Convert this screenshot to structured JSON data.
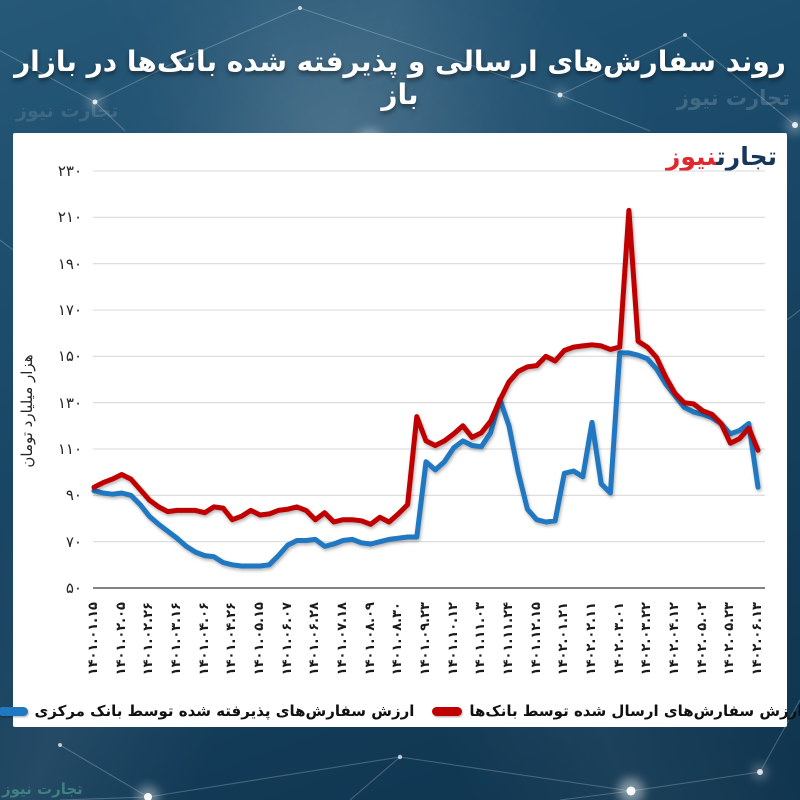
{
  "header": {
    "title": "روند سفارش‌های ارسالی و پذیرفته شده بانک‌ها در بازار باز",
    "watermark": "تجارت نیوز"
  },
  "logo": {
    "part_primary": "تجارت",
    "part_accent": "نیوز"
  },
  "colors": {
    "background_navy": "#15405e",
    "card_white": "#ffffff",
    "sent_red": "#c00000",
    "accepted_blue": "#1f78c1",
    "gridline_gray": "#d9d9d9",
    "axis_gray": "#595959",
    "logo_blue": "#16365c",
    "logo_red": "#e0282e"
  },
  "chart_data": {
    "type": "line",
    "title": "روند سفارش‌های ارسالی و پذیرفته شده بانک‌ها در بازار باز",
    "xlabel": "",
    "ylabel": "هزار میلیارد تومان",
    "ylim": [
      50,
      230
    ],
    "grid": "horizontal",
    "legend_position": "bottom",
    "yticks": [
      {
        "value": 230,
        "label": "۲۳۰"
      },
      {
        "value": 210,
        "label": "۲۱۰"
      },
      {
        "value": 190,
        "label": "۱۹۰"
      },
      {
        "value": 170,
        "label": "۱۷۰"
      },
      {
        "value": 150,
        "label": "۱۵۰"
      },
      {
        "value": 130,
        "label": "۱۳۰"
      },
      {
        "value": 110,
        "label": "۱۱۰"
      },
      {
        "value": 90,
        "label": "۹۰"
      },
      {
        "value": 70,
        "label": "۷۰"
      },
      {
        "value": 50,
        "label": "۵۰"
      }
    ],
    "x_tick_labels": [
      "۱۴۰۱.۰۱.۱۵",
      "۱۴۰۱.۰۲.۰۵",
      "۱۴۰۱.۰۲.۲۶",
      "۱۴۰۱.۰۳.۱۶",
      "۱۴۰۱.۰۴.۰۶",
      "۱۴۰۱.۰۴.۲۶",
      "۱۴۰۱.۰۵.۱۵",
      "۱۴۰۱.۰۶.۰۷",
      "۱۴۰۱.۰۶.۲۸",
      "۱۴۰۱.۰۷.۱۸",
      "۱۴۰۱.۰۸.۰۹",
      "۱۴۰۱.۰۸.۳۰",
      "۱۴۰۱.۰۹.۲۳",
      "۱۴۰۱.۱۰.۱۲",
      "۱۴۰۱.۱۱.۰۳",
      "۱۴۰۱.۱۱.۲۴",
      "۱۴۰۱.۱۲.۱۵",
      "۱۴۰۲.۰۱.۲۱",
      "۱۴۰۲.۰۲.۱۱",
      "۱۴۰۲.۰۳.۰۱",
      "۱۴۰۲.۰۳.۲۲",
      "۱۴۰۲.۰۴.۱۲",
      "۱۴۰۲.۰۵.۰۲",
      "۱۴۰۲.۰۵.۲۳",
      "۱۴۰۲.۰۶.۱۳"
    ],
    "x_label_every_n_points": 3,
    "series": [
      {
        "name": "ارزش سفارش‌های ارسال شده توسط بانک‌ها",
        "color": "#c00000",
        "values": [
          93.5,
          95.5,
          97,
          99,
          97,
          92.5,
          88,
          85,
          83,
          83.5,
          83.5,
          83.5,
          82.5,
          85,
          84.5,
          79.5,
          81,
          83.5,
          81.5,
          82,
          83.5,
          84,
          85,
          83.5,
          79.5,
          82.5,
          78.5,
          79.5,
          79.5,
          79,
          77.5,
          80.5,
          78.5,
          82,
          86,
          124,
          113.5,
          111.5,
          113.5,
          116.5,
          120,
          115,
          117,
          122,
          131,
          139,
          143.5,
          145.5,
          146,
          150,
          148,
          152.5,
          154,
          154.5,
          155,
          154.5,
          153,
          154,
          213,
          156.5,
          154,
          149.5,
          141,
          134,
          130,
          129.5,
          126.5,
          125,
          121,
          112.5,
          114.5,
          119,
          109.5
        ]
      },
      {
        "name": "ارزش سفارش‌های پذیرفته شده توسط بانک مرکزی",
        "color": "#1f78c1",
        "values": [
          92,
          91,
          90.5,
          91,
          90,
          86,
          81,
          77.5,
          74.5,
          71.5,
          68,
          65.5,
          64,
          63.5,
          61,
          60,
          59.5,
          59.5,
          59.5,
          60,
          64,
          68.5,
          70.5,
          70.5,
          71,
          68,
          69,
          70.5,
          71,
          69.5,
          69,
          70,
          71,
          71.5,
          72,
          72,
          104.5,
          101,
          104.5,
          110.5,
          113.5,
          111.5,
          111,
          117,
          131.5,
          120,
          100,
          84,
          79.5,
          78.5,
          79,
          99.5,
          100.5,
          98,
          121.5,
          95,
          91,
          151.5,
          151.5,
          150.5,
          149,
          144.5,
          138,
          133,
          128,
          126,
          125,
          123.5,
          121,
          116.5,
          118,
          121,
          93.5
        ]
      }
    ]
  }
}
